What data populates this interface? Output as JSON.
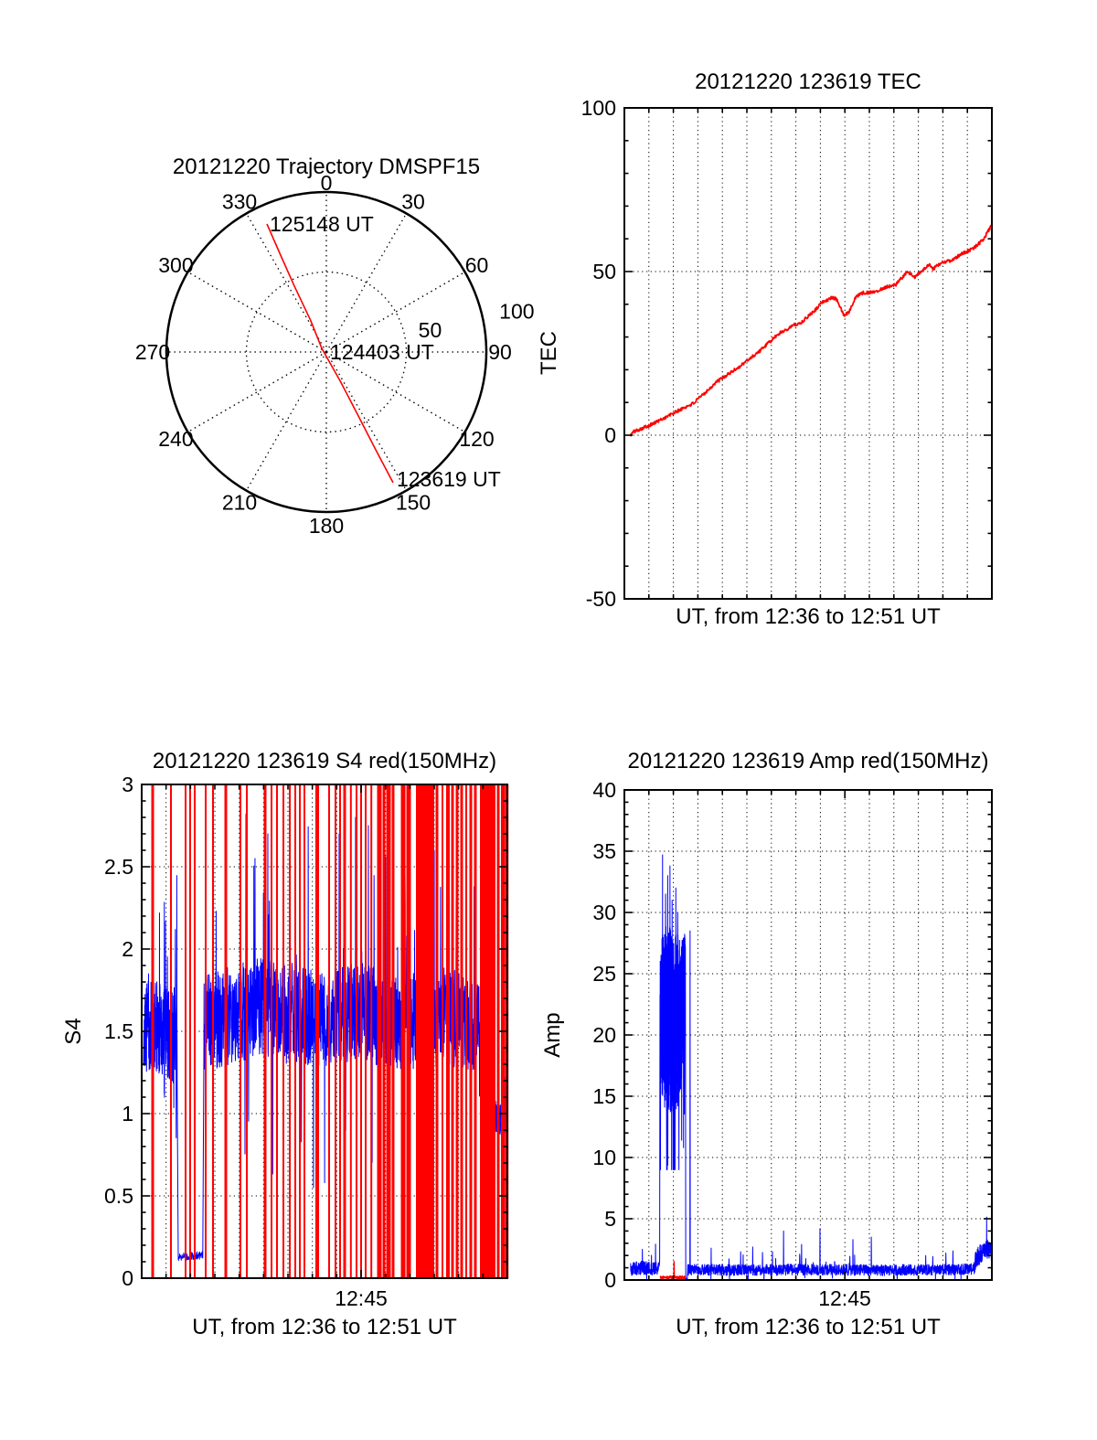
{
  "figure": {
    "background": "#ffffff"
  },
  "colors": {
    "red": "#ff0000",
    "blue": "#0000ff",
    "axis": "#000000"
  },
  "chart_data": {
    "polar": {
      "type": "line",
      "subtype": "polar-trajectory",
      "title": "20121220 Trajectory DMSPF15",
      "azimuth_tick_labels": [
        "0",
        "30",
        "60",
        "90",
        "120",
        "150",
        "180",
        "210",
        "240",
        "270",
        "300",
        "330"
      ],
      "azimuth_tick_degrees": [
        0,
        30,
        60,
        90,
        120,
        150,
        180,
        210,
        240,
        270,
        300,
        330
      ],
      "radial_ticks": [
        {
          "label": "50",
          "r": 50
        },
        {
          "label": "100",
          "r": 100
        }
      ],
      "rmax": 100,
      "grid": "dotted-spokes-every-30deg-and-mid-circle",
      "trajectory": {
        "color": "#ff0000",
        "points_az_r": [
          [
            152.95,
            91.7
          ],
          [
            153.2,
            68
          ],
          [
            153.4,
            44.7
          ],
          [
            154.5,
            20
          ],
          [
            309,
            3.7
          ],
          [
            333.5,
            22
          ],
          [
            334.1,
            45.7
          ],
          [
            334.7,
            67
          ],
          [
            335.1,
            88.2
          ]
        ]
      },
      "annotations": [
        {
          "label": "123619 UT",
          "az": 152.95,
          "r": 91.7
        },
        {
          "label": "124403 UT",
          "az": 0,
          "r": 0
        },
        {
          "label": "125148 UT",
          "az": 335.1,
          "r": 88.2
        }
      ]
    },
    "tec": {
      "type": "line",
      "name": "tec",
      "title": "20121220 123619 TEC",
      "ylabel": "TEC",
      "xlabel": "UT, from 12:36 to 12:51 UT",
      "ylim": [
        -50,
        100
      ],
      "yticks": [
        {
          "label": "-50",
          "v": -50
        },
        {
          "label": "0",
          "v": 0
        },
        {
          "label": "50",
          "v": 50
        },
        {
          "label": "100",
          "v": 100
        }
      ],
      "y_minor_step": 10,
      "grid_y": [
        0,
        50
      ],
      "x_minutes": 15,
      "series": [
        {
          "name": "TEC",
          "color": "#ff0000",
          "noise": 0.5,
          "anchors": [
            [
              0.017,
              0
            ],
            [
              0.024,
              1
            ],
            [
              0.08,
              3.6
            ],
            [
              0.14,
              7.1
            ],
            [
              0.19,
              9.9
            ],
            [
              0.25,
              16.2
            ],
            [
              0.31,
              20.7
            ],
            [
              0.37,
              25.9
            ],
            [
              0.42,
              31
            ],
            [
              0.46,
              33.6
            ],
            [
              0.48,
              34.3
            ],
            [
              0.52,
              38.4
            ],
            [
              0.54,
              40.8
            ],
            [
              0.565,
              42
            ],
            [
              0.578,
              41.5
            ],
            [
              0.597,
              36.6
            ],
            [
              0.61,
              37.5
            ],
            [
              0.63,
              42.4
            ],
            [
              0.65,
              43.5
            ],
            [
              0.68,
              43.7
            ],
            [
              0.71,
              45.2
            ],
            [
              0.74,
              46.1
            ],
            [
              0.755,
              48.1
            ],
            [
              0.77,
              49.8
            ],
            [
              0.79,
              48.4
            ],
            [
              0.81,
              50.3
            ],
            [
              0.83,
              52
            ],
            [
              0.84,
              50.7
            ],
            [
              0.86,
              52.6
            ],
            [
              0.89,
              53.4
            ],
            [
              0.92,
              55.5
            ],
            [
              0.945,
              56.8
            ],
            [
              0.96,
              58
            ],
            [
              0.98,
              60.3
            ],
            [
              0.99,
              62.3
            ],
            [
              0.998,
              64
            ]
          ]
        }
      ]
    },
    "s4": {
      "type": "line",
      "name": "s4",
      "title": "20121220 123619 S4 red(150MHz)",
      "ylabel": "S4",
      "xlabel": "UT, from 12:36 to 12:51 UT",
      "ylim": [
        0,
        3
      ],
      "yticks": [
        {
          "label": "0",
          "v": 0
        },
        {
          "label": "0.5",
          "v": 0.5
        },
        {
          "label": "1",
          "v": 1
        },
        {
          "label": "1.5",
          "v": 1.5
        },
        {
          "label": "2",
          "v": 2
        },
        {
          "label": "2.5",
          "v": 2.5
        },
        {
          "label": "3",
          "v": 3
        }
      ],
      "y_minor_step": 0.1,
      "grid_y": [
        0.5,
        1,
        1.5,
        2,
        2.5
      ],
      "x_minutes": 15,
      "xtick": {
        "label": "12:45",
        "frac": 0.6
      },
      "red_event_lines": {
        "color": "#ff0000",
        "full_height": true,
        "positions": [
          [
            0.0,
            2
          ],
          [
            0.03,
            3
          ],
          [
            0.08,
            2
          ],
          [
            0.12,
            2
          ],
          [
            0.1325,
            2
          ],
          [
            0.145,
            2
          ],
          [
            0.175,
            2
          ],
          [
            0.195,
            2
          ],
          [
            0.23,
            3
          ],
          [
            0.27,
            2
          ],
          [
            0.2875,
            2
          ],
          [
            0.3375,
            3
          ],
          [
            0.355,
            2
          ],
          [
            0.37,
            2
          ],
          [
            0.3875,
            2
          ],
          [
            0.405,
            2
          ],
          [
            0.42,
            2
          ],
          [
            0.4325,
            2
          ],
          [
            0.445,
            2
          ],
          [
            0.48,
            4
          ],
          [
            0.5125,
            2
          ],
          [
            0.53,
            2
          ],
          [
            0.5425,
            2
          ],
          [
            0.555,
            3
          ],
          [
            0.572,
            2
          ],
          [
            0.5875,
            2
          ],
          [
            0.6,
            2
          ],
          [
            0.6125,
            2
          ],
          [
            0.628,
            2
          ],
          [
            0.65,
            5
          ],
          [
            0.6625,
            3
          ],
          [
            0.675,
            5
          ],
          [
            0.6875,
            3
          ],
          [
            0.715,
            5
          ],
          [
            0.73,
            5
          ],
          [
            0.76,
            8
          ],
          [
            0.775,
            10
          ],
          [
            0.79,
            8
          ],
          [
            0.8075,
            3
          ],
          [
            0.8225,
            2
          ],
          [
            0.8375,
            4
          ],
          [
            0.85,
            3
          ],
          [
            0.8625,
            3
          ],
          [
            0.875,
            3
          ],
          [
            0.8875,
            2
          ],
          [
            0.9,
            3
          ],
          [
            0.9125,
            3
          ],
          [
            0.935,
            8
          ],
          [
            0.95,
            6
          ],
          [
            0.9625,
            4
          ],
          [
            0.975,
            3
          ],
          [
            0.9875,
            4
          ],
          [
            0.998,
            4
          ]
        ]
      },
      "blue_series": {
        "color": "#0000ff",
        "segments": [
          {
            "t0": 0.005,
            "t1": 0.097,
            "mean": [
              [
                0.005,
                1.5
              ],
              [
                0.03,
                1.55
              ],
              [
                0.06,
                1.5
              ],
              [
                0.097,
                1.45
              ]
            ],
            "amp": 0.28,
            "n": 280,
            "heavy": 0.05
          },
          {
            "t0": 0.1,
            "t1": 0.167,
            "mean": [
              [
                0.1,
                0.13
              ],
              [
                0.167,
                0.14
              ]
            ],
            "amp": 0.025,
            "n": 90,
            "heavy": 0
          },
          {
            "t0": 0.17,
            "t1": 0.944,
            "mean": [
              [
                0.17,
                1.55
              ],
              [
                0.25,
                1.6
              ],
              [
                0.32,
                1.65
              ],
              [
                0.4,
                1.6
              ],
              [
                0.5,
                1.58
              ],
              [
                0.6,
                1.62
              ],
              [
                0.7,
                1.55
              ],
              [
                0.8,
                1.6
              ],
              [
                0.9,
                1.55
              ],
              [
                0.944,
                1.5
              ]
            ],
            "amp": 0.3,
            "n": 1500,
            "heavy": 0.05
          },
          {
            "t0": 0.946,
            "t1": 0.999,
            "mean": [
              [
                0.946,
                1.0
              ],
              [
                0.999,
                0.95
              ]
            ],
            "amp": 0.1,
            "n": 110,
            "heavy": 0.03
          }
        ],
        "spikes": [
          [
            0.285,
            2.82
          ],
          [
            0.31,
            2.55
          ],
          [
            0.345,
            2.7
          ],
          [
            0.445,
            0.62
          ],
          [
            0.47,
            0.55
          ],
          [
            0.5,
            0.58
          ],
          [
            0.54,
            2.7
          ],
          [
            0.585,
            2.8
          ],
          [
            0.62,
            2.75
          ],
          [
            0.66,
            2.6
          ],
          [
            0.72,
            2.45
          ],
          [
            0.76,
            2.3
          ],
          [
            0.8,
            2.6
          ],
          [
            0.86,
            2.3
          ],
          [
            0.9,
            2.75
          ],
          [
            0.955,
            2.75
          ],
          [
            0.965,
            2.85
          ]
        ]
      }
    },
    "amp": {
      "type": "line",
      "name": "amp",
      "title": "20121220 123619 Amp red(150MHz)",
      "ylabel": "Amp",
      "xlabel": "UT, from 12:36 to 12:51 UT",
      "ylim": [
        0,
        40
      ],
      "yticks": [
        {
          "label": "0",
          "v": 0
        },
        {
          "label": "5",
          "v": 5
        },
        {
          "label": "10",
          "v": 10
        },
        {
          "label": "15",
          "v": 15
        },
        {
          "label": "20",
          "v": 20
        },
        {
          "label": "25",
          "v": 25
        },
        {
          "label": "30",
          "v": 30
        },
        {
          "label": "35",
          "v": 35
        },
        {
          "label": "40",
          "v": 40
        }
      ],
      "y_minor_step": 1,
      "grid_y": [
        5,
        10,
        15,
        20,
        25,
        30,
        35
      ],
      "x_minutes": 15,
      "xtick": {
        "label": "12:45",
        "frac": 0.6
      },
      "blue_series": {
        "color": "#0000ff",
        "segments": [
          {
            "t0": 0.017,
            "t1": 0.096,
            "mean": [
              [
                0.017,
                0.9
              ],
              [
                0.05,
                1.0
              ],
              [
                0.096,
                0.9
              ]
            ],
            "amp": 0.55,
            "n": 220,
            "heavy": 0.03,
            "clampLo": 0.05
          },
          {
            "t0": 0.097,
            "t1": 0.166,
            "burst": true,
            "hi": [
              [
                0.097,
                26
              ],
              [
                0.103,
                29
              ],
              [
                0.12,
                29
              ],
              [
                0.135,
                28
              ],
              [
                0.15,
                28.5
              ],
              [
                0.166,
                28.5
              ]
            ],
            "lo": [
              [
                0.097,
                16
              ],
              [
                0.11,
                14
              ],
              [
                0.13,
                13.5
              ],
              [
                0.15,
                14
              ],
              [
                0.166,
                20
              ]
            ],
            "n": 260
          },
          {
            "t0": 0.167,
            "t1": 0.171,
            "mean": [
              [
                0.167,
                0.1
              ],
              [
                0.171,
                0.1
              ]
            ],
            "amp": 0.05,
            "n": 10,
            "heavy": 0
          },
          {
            "t0": 0.172,
            "t1": 0.954,
            "mean": [
              [
                0.172,
                0.85
              ],
              [
                0.3,
                0.8
              ],
              [
                0.5,
                0.85
              ],
              [
                0.7,
                0.8
              ],
              [
                0.9,
                0.85
              ],
              [
                0.954,
                0.9
              ]
            ],
            "amp": 0.45,
            "n": 1500,
            "heavy": 0.03,
            "clampLo": 0.05
          },
          {
            "t0": 0.955,
            "t1": 0.999,
            "mean": [
              [
                0.955,
                1.6
              ],
              [
                0.97,
                2.2
              ],
              [
                0.985,
                2.6
              ],
              [
                0.999,
                2.2
              ]
            ],
            "amp": 0.8,
            "n": 130,
            "heavy": 0.02,
            "clampLo": 0.3
          }
        ],
        "burst_peak_spikes": [
          [
            0.104,
            34.7
          ],
          [
            0.112,
            31.5
          ],
          [
            0.118,
            33
          ],
          [
            0.124,
            33.8
          ],
          [
            0.13,
            31
          ],
          [
            0.14,
            32
          ],
          [
            0.145,
            30
          ]
        ],
        "spikes": [
          [
            0.179,
            28.5
          ],
          [
            0.236,
            2.6
          ],
          [
            0.349,
            2.7
          ],
          [
            0.403,
            2.3
          ],
          [
            0.433,
            4.0
          ],
          [
            0.482,
            2.9
          ],
          [
            0.532,
            4.2
          ],
          [
            0.622,
            3.3
          ],
          [
            0.672,
            3.5
          ],
          [
            0.82,
            2.0
          ],
          [
            0.875,
            2.2
          ]
        ]
      },
      "red_series": {
        "color": "#ff0000",
        "t0": 0.098,
        "t1": 0.167,
        "value": 0.2,
        "amp": 0.12,
        "n": 100,
        "spike": [
          0.135,
          1.5
        ]
      }
    }
  }
}
